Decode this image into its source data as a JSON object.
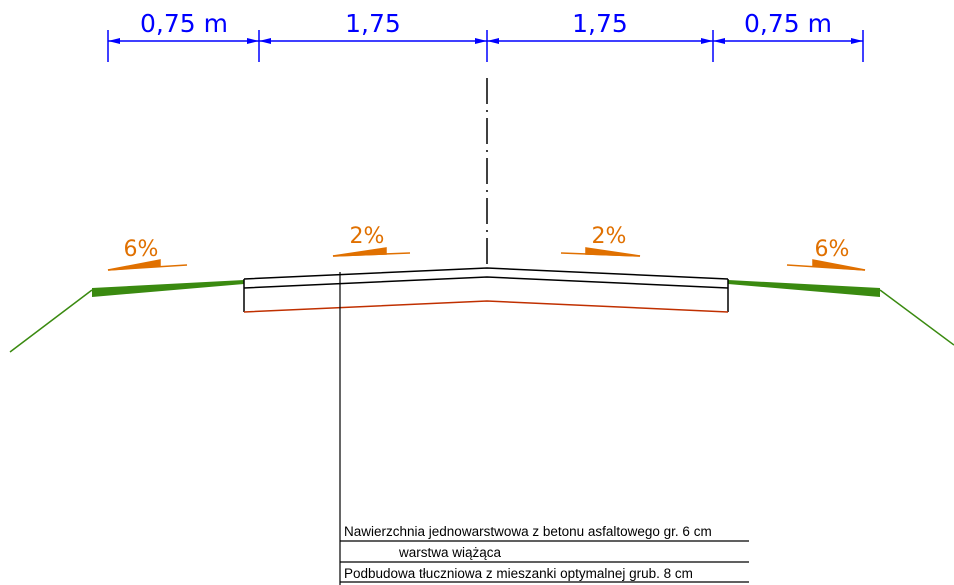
{
  "dimensions": {
    "left_shoulder": "0,75 m",
    "left_lane": "1,75",
    "right_lane": "1,75",
    "right_shoulder": "0,75 m"
  },
  "slopes": {
    "left_shoulder": "6%",
    "left_lane": "2%",
    "right_lane": "2%",
    "right_shoulder": "6%"
  },
  "legend": {
    "line1": "Nawierzchnia jednowarstwowa z betonu asfaltowego gr. 6 cm",
    "line2": "warstwa wiążąca",
    "line3": "Podbudowa tłuczniowa z mieszanki optymalnej grub. 8 cm"
  },
  "colors": {
    "dimension": "#0000ff",
    "slope": "#e07000",
    "grass": "#3a8a10",
    "base_layer": "#c03000",
    "pavement": "#000000"
  }
}
